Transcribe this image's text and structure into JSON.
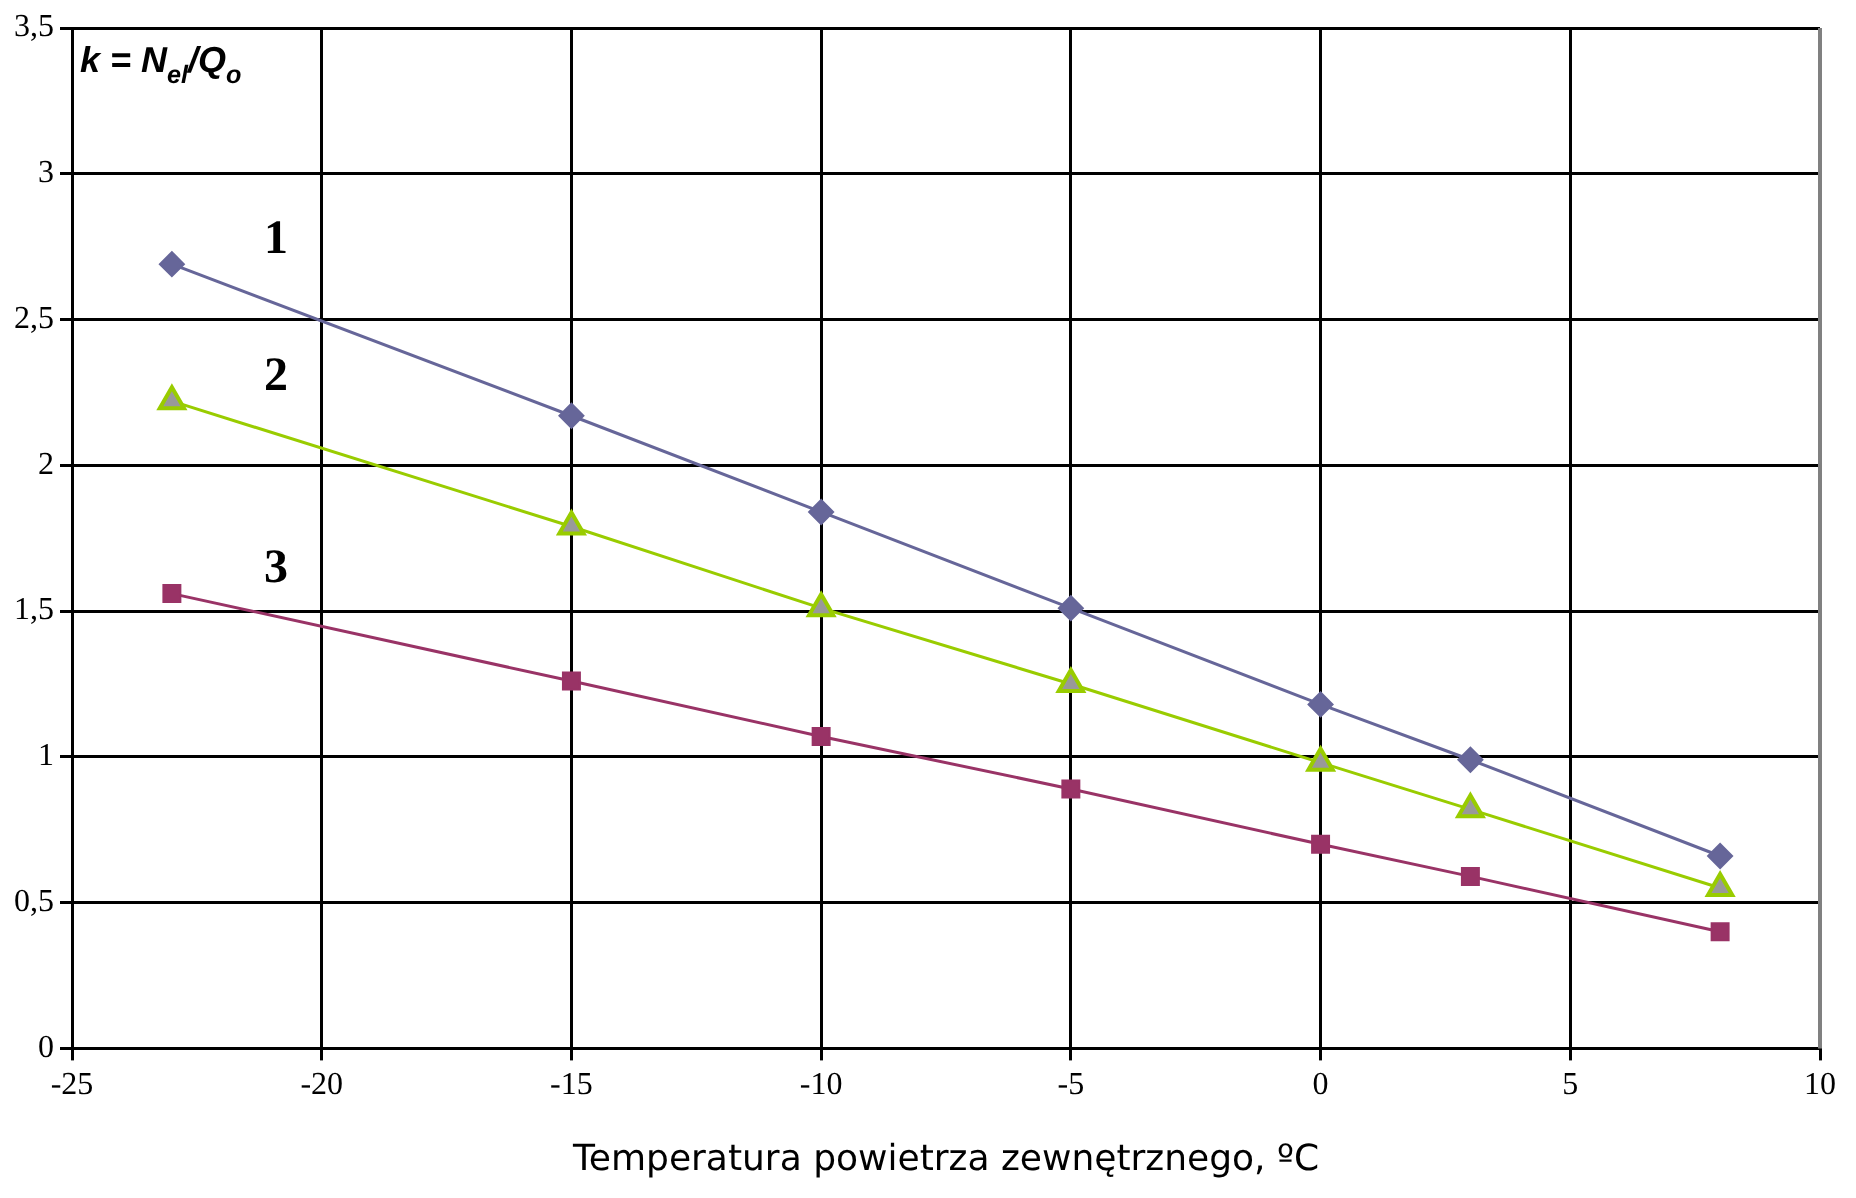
{
  "chart_data": {
    "type": "line",
    "ylabel": "k = N$_{el}$/Q$_{o}$",
    "xlabel": "Temperatura powietrza zewnętrznego, ºC",
    "x": [
      -23,
      -15,
      -10,
      -5,
      0,
      3,
      8
    ],
    "series": [
      {
        "name": "1",
        "color": "#666699",
        "marker": "diamond",
        "values": [
          2.69,
          2.17,
          1.84,
          1.51,
          1.18,
          0.99,
          0.66
        ]
      },
      {
        "name": "2",
        "color": "#99cc00",
        "marker": "triangle",
        "values": [
          2.22,
          1.79,
          1.51,
          1.25,
          0.98,
          0.82,
          0.55
        ]
      },
      {
        "name": "3",
        "color": "#993366",
        "marker": "square",
        "values": [
          1.56,
          1.26,
          1.07,
          0.89,
          0.7,
          0.59,
          0.4
        ]
      }
    ],
    "xlim": [
      -25,
      10
    ],
    "xticks": [
      -25,
      -20,
      -15,
      -10,
      -5,
      0,
      5,
      10
    ],
    "ylim": [
      0,
      3.5
    ],
    "yticks": [
      0,
      {
        "value": 0.5,
        "label": "0,5"
      },
      1,
      {
        "value": 1.5,
        "label": "1,5"
      },
      2,
      {
        "value": 2.5,
        "label": "2,5"
      },
      3,
      {
        "value": 3.5,
        "label": "3,5"
      }
    ],
    "grid": true,
    "legend": false,
    "line_style": "solid"
  }
}
